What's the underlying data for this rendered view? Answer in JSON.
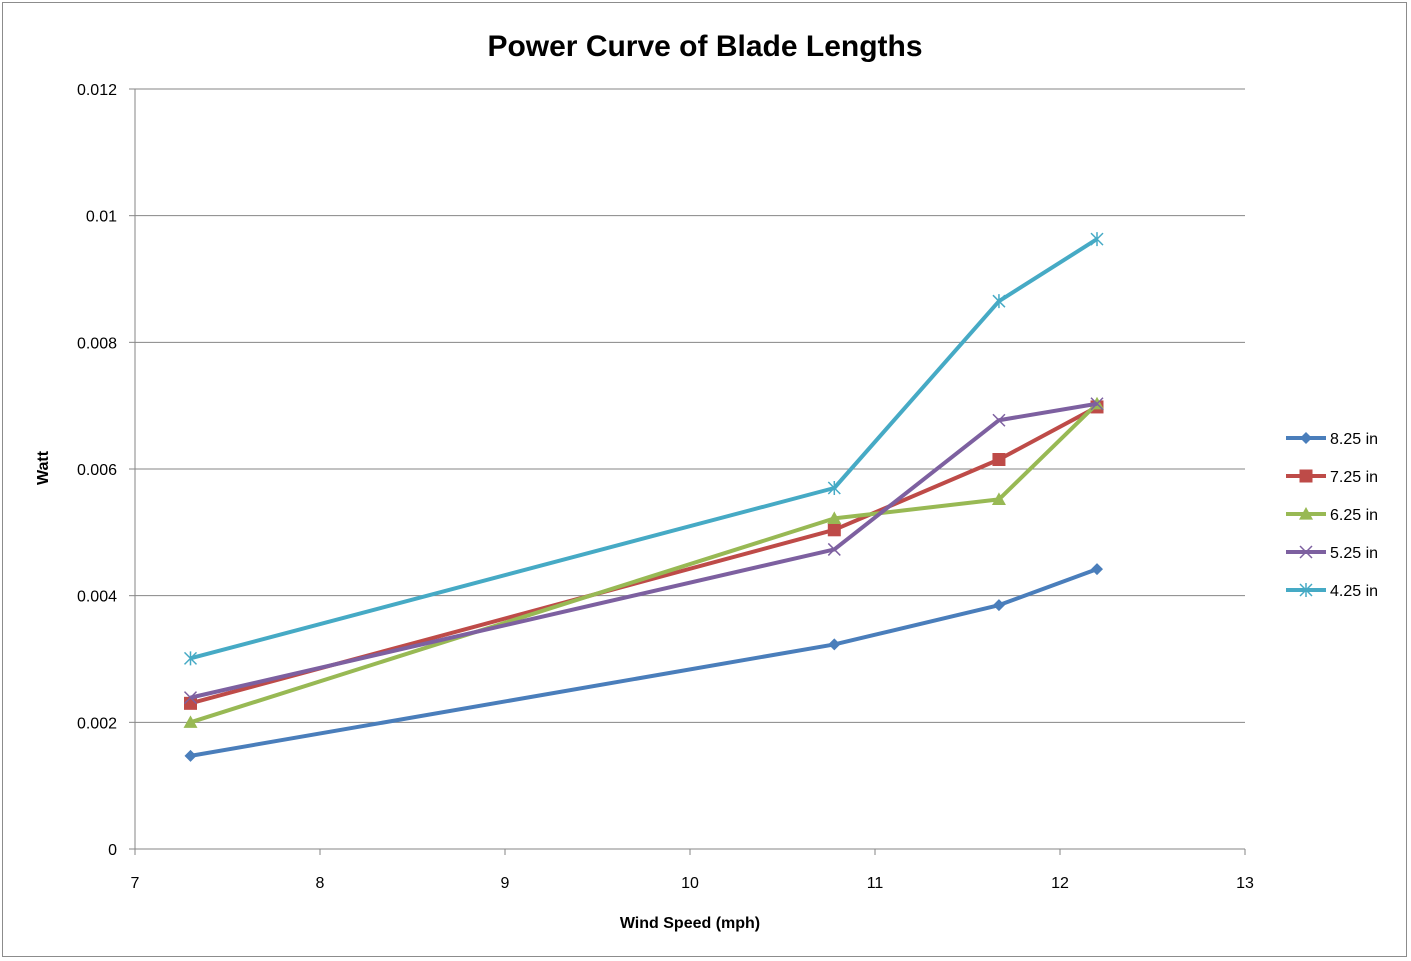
{
  "chart_data": {
    "type": "line",
    "title": "Power Curve of Blade Lengths",
    "xlabel": "Wind Speed (mph)",
    "ylabel": "Watt",
    "xlim": [
      7,
      13
    ],
    "ylim": [
      0,
      0.012
    ],
    "x_ticks": [
      "7",
      "8",
      "9",
      "10",
      "11",
      "12",
      "13"
    ],
    "y_ticks": [
      "0",
      "0.002",
      "0.004",
      "0.006",
      "0.008",
      "0.01",
      "0.012"
    ],
    "grid": "horizontal",
    "legend_position": "right",
    "series": [
      {
        "name": "8.25 in",
        "color": "#4A7EBB",
        "marker": "diamond",
        "x": [
          7.3,
          10.78,
          11.67,
          12.2
        ],
        "y": [
          0.00147,
          0.00323,
          0.00385,
          0.00442
        ]
      },
      {
        "name": "7.25 in",
        "color": "#BE4B48",
        "marker": "square",
        "x": [
          7.3,
          10.78,
          11.67,
          12.2
        ],
        "y": [
          0.0023,
          0.00504,
          0.00615,
          0.00698
        ]
      },
      {
        "name": "6.25 in",
        "color": "#98B954",
        "marker": "triangle",
        "x": [
          7.3,
          10.78,
          11.67,
          12.2
        ],
        "y": [
          0.002,
          0.00522,
          0.00552,
          0.00703
        ]
      },
      {
        "name": "5.25 in",
        "color": "#7D60A0",
        "marker": "x",
        "x": [
          7.3,
          10.78,
          11.67,
          12.2
        ],
        "y": [
          0.00239,
          0.00473,
          0.00677,
          0.00703
        ]
      },
      {
        "name": "4.25 in",
        "color": "#46AAC5",
        "marker": "star",
        "x": [
          7.3,
          10.78,
          11.67,
          12.2
        ],
        "y": [
          0.00301,
          0.0057,
          0.00865,
          0.00963
        ]
      }
    ]
  }
}
